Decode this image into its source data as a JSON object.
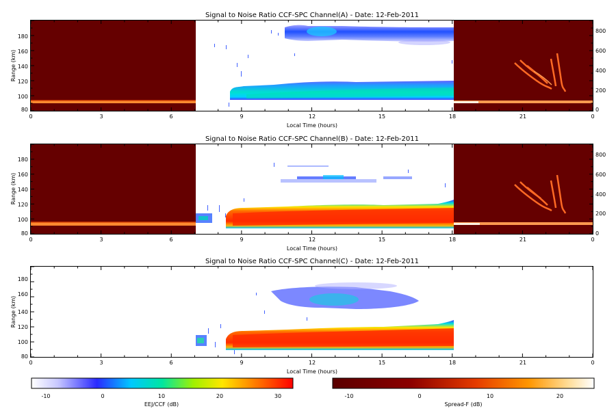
{
  "panels": [
    {
      "title": "Signal to Noise Ratio CCF-SPC Channel(A) - Date: 12-Feb-2011",
      "xlabel": "Local Time (hours)",
      "ylabel": "Range (km)",
      "x_ticks": [
        "0",
        "3",
        "6",
        "9",
        "12",
        "15",
        "18",
        "21",
        "0"
      ],
      "y_ticks": [
        "80",
        "100",
        "120",
        "140",
        "160",
        "180"
      ],
      "right_ticks": [
        "0",
        "200",
        "400",
        "600",
        "800"
      ]
    },
    {
      "title": "Signal to Noise Ratio CCF-SPC Channel(B) - Date: 12-Feb-2011",
      "xlabel": "Local Time (hours)",
      "ylabel": "Range (km)",
      "x_ticks": [
        "0",
        "3",
        "6",
        "9",
        "12",
        "15",
        "18",
        "21",
        "0"
      ],
      "y_ticks": [
        "80",
        "100",
        "120",
        "140",
        "160",
        "180"
      ],
      "right_ticks": [
        "0",
        "200",
        "400",
        "600",
        "800"
      ]
    },
    {
      "title": "Signal to Noise Ratio CCF-SPC Channel(C) - Date: 12-Feb-2011",
      "xlabel": "Local Time (hours)",
      "ylabel": "Range (km)",
      "x_ticks": [
        "0",
        "3",
        "6",
        "9",
        "12",
        "15",
        "18",
        "21",
        "0"
      ],
      "y_ticks": [
        "80",
        "100",
        "120",
        "140",
        "160",
        "180"
      ],
      "right_ticks": []
    }
  ],
  "colorbars": [
    {
      "label": "EEJ/CCF (dB)",
      "ticks": [
        "-10",
        "0",
        "10",
        "20",
        "30"
      ],
      "colormap": "rainbow"
    },
    {
      "label": "Spread-F (dB)",
      "ticks": [
        "-10",
        "0",
        "10",
        "20"
      ],
      "colormap": "heat"
    }
  ],
  "chart_data": [
    {
      "type": "heatmap",
      "title": "Signal to Noise Ratio CCF-SPC Channel(A) - Date: 12-Feb-2011",
      "xlabel": "Local Time (hours)",
      "ylabel": "Range (km)",
      "xlim": [
        0,
        24
      ],
      "ylim": [
        78,
        195
      ],
      "right_ylim": [
        0,
        900
      ],
      "colorbar": "EEJ/CCF (dB)",
      "zlim": [
        -13,
        33
      ],
      "daytime_hours": [
        7,
        18
      ],
      "features": [
        {
          "name": "EEJ echoes",
          "x_range": [
            8.5,
            18
          ],
          "range_km": [
            97,
            117
          ],
          "snr_db": 8
        },
        {
          "name": "150 km echoes",
          "x_range": [
            10.7,
            18
          ],
          "range_km": [
            165,
            188
          ],
          "snr_db": 0
        }
      ]
    },
    {
      "type": "heatmap",
      "title": "Signal to Noise Ratio CCF-SPC Channel(B) - Date: 12-Feb-2011",
      "xlabel": "Local Time (hours)",
      "ylabel": "Range (km)",
      "xlim": [
        0,
        24
      ],
      "ylim": [
        78,
        195
      ],
      "right_ylim": [
        0,
        900
      ],
      "colorbar": "EEJ/CCF (dB)",
      "zlim": [
        -13,
        33
      ],
      "daytime_hours": [
        7,
        18
      ],
      "features": [
        {
          "name": "EEJ echoes",
          "x_range": [
            7.0,
            18
          ],
          "range_km": [
            88,
            120
          ],
          "snr_db": 28
        },
        {
          "name": "150 km echoes",
          "x_range": [
            10.3,
            16.3
          ],
          "range_km": [
            150,
            172
          ],
          "snr_db": -3
        }
      ]
    },
    {
      "type": "heatmap",
      "title": "Signal to Noise Ratio CCF-SPC Channel(C) - Date: 12-Feb-2011",
      "xlabel": "Local Time (hours)",
      "ylabel": "Range (km)",
      "xlim": [
        0,
        24
      ],
      "ylim": [
        78,
        195
      ],
      "colorbar": "EEJ/CCF (dB)",
      "zlim": [
        -13,
        33
      ],
      "daytime_hours": [
        7,
        18
      ],
      "features": [
        {
          "name": "EEJ echoes",
          "x_range": [
            7.0,
            18
          ],
          "range_km": [
            90,
            122
          ],
          "snr_db": 29
        },
        {
          "name": "150 km echoes",
          "x_range": [
            10.3,
            16.5
          ],
          "range_km": [
            140,
            172
          ],
          "snr_db": 2
        }
      ]
    }
  ]
}
